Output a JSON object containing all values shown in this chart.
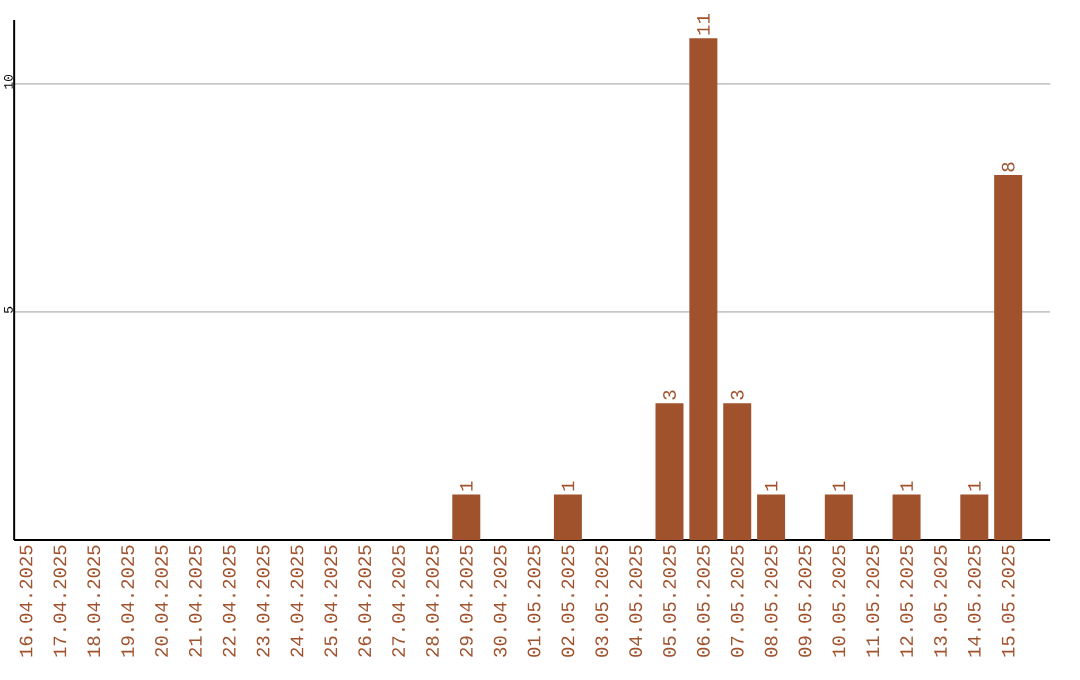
{
  "chart_data": {
    "type": "bar",
    "categories": [
      "16.04.2025",
      "17.04.2025",
      "18.04.2025",
      "19.04.2025",
      "20.04.2025",
      "21.04.2025",
      "22.04.2025",
      "23.04.2025",
      "24.04.2025",
      "25.04.2025",
      "26.04.2025",
      "27.04.2025",
      "28.04.2025",
      "29.04.2025",
      "30.04.2025",
      "01.05.2025",
      "02.05.2025",
      "03.05.2025",
      "04.05.2025",
      "05.05.2025",
      "06.05.2025",
      "07.05.2025",
      "08.05.2025",
      "09.05.2025",
      "10.05.2025",
      "11.05.2025",
      "12.05.2025",
      "13.05.2025",
      "14.05.2025",
      "15.05.2025"
    ],
    "values": [
      0,
      0,
      0,
      0,
      0,
      0,
      0,
      0,
      0,
      0,
      0,
      0,
      0,
      1,
      0,
      0,
      1,
      0,
      0,
      3,
      11,
      3,
      1,
      0,
      1,
      0,
      1,
      0,
      1,
      8
    ],
    "value_labels": [
      null,
      null,
      null,
      null,
      null,
      null,
      null,
      null,
      null,
      null,
      null,
      null,
      null,
      "1",
      null,
      null,
      "1",
      null,
      null,
      "3",
      "11",
      "3",
      "1",
      null,
      "1",
      null,
      "1",
      null,
      "1",
      "8"
    ],
    "color": "#a0522d",
    "ylim": [
      0,
      11.4
    ],
    "yticks": [
      5,
      10
    ],
    "grid": "y"
  }
}
